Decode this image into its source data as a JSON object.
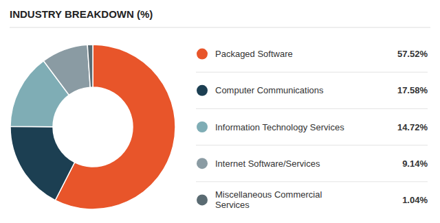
{
  "chart_data": {
    "type": "pie",
    "title": "INDUSTRY BREAKDOWN (%)",
    "categories": [
      "Packaged Software",
      "Computer Communications",
      "Information Technology Services",
      "Internet Software/Services",
      "Miscellaneous Commercial\nServices"
    ],
    "values": [
      57.52,
      17.58,
      14.72,
      9.14,
      1.04
    ],
    "value_labels": [
      "57.52%",
      "17.58%",
      "14.72%",
      "9.14%",
      "1.04%"
    ],
    "colors": [
      "#E8552A",
      "#1C3F52",
      "#7FADB5",
      "#8A9BA3",
      "#5A6B72"
    ]
  }
}
